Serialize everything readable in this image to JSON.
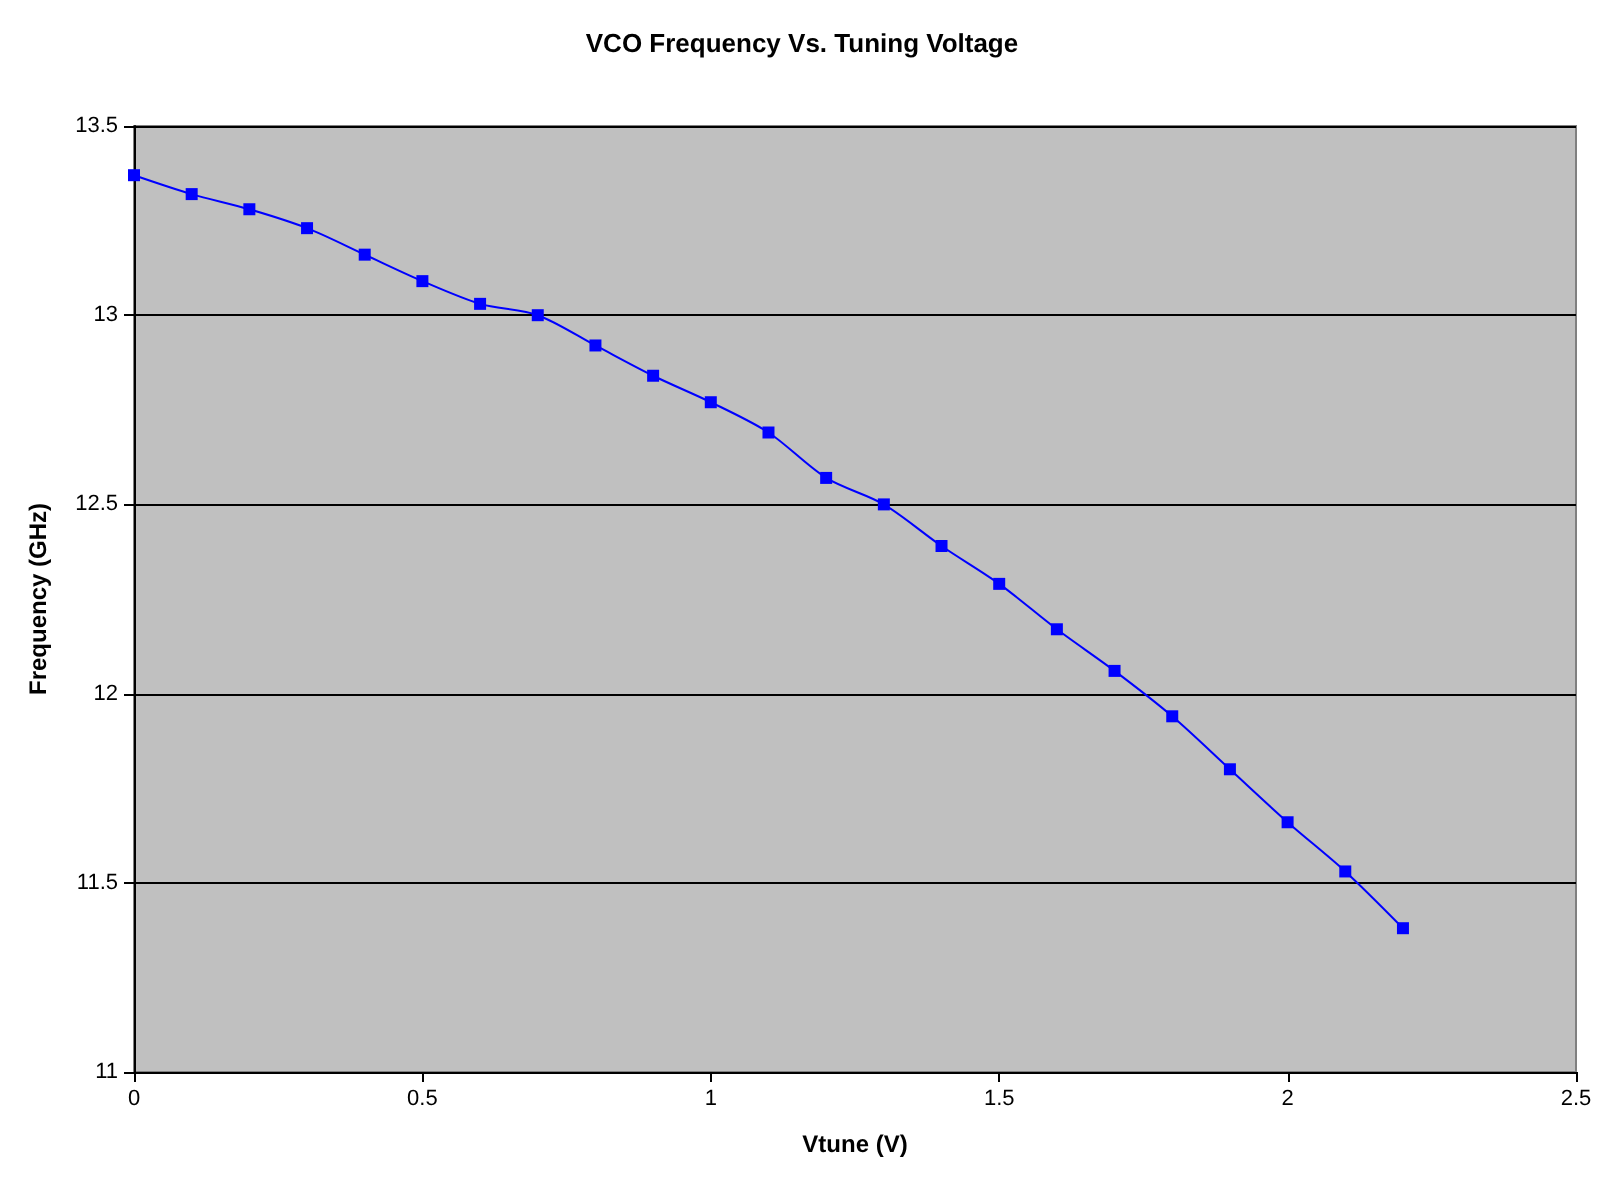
{
  "chart_data": {
    "type": "line",
    "title": "VCO Frequency Vs. Tuning Voltage",
    "xlabel": "Vtune (V)",
    "ylabel": "Frequency (GHz)",
    "x": [
      0,
      0.1,
      0.2,
      0.3,
      0.4,
      0.5,
      0.6,
      0.7,
      0.8,
      0.9,
      1.0,
      1.1,
      1.2,
      1.3,
      1.4,
      1.5,
      1.6,
      1.7,
      1.8,
      1.9,
      2.0,
      2.1,
      2.2
    ],
    "series": [
      {
        "color": "#0000ff",
        "values": [
          13.37,
          13.32,
          13.28,
          13.23,
          13.16,
          13.09,
          13.03,
          13.0,
          12.92,
          12.84,
          12.77,
          12.69,
          12.57,
          12.5,
          12.39,
          12.29,
          12.17,
          12.06,
          11.94,
          11.8,
          11.66,
          11.53,
          11.38
        ]
      }
    ],
    "xlim": [
      0,
      2.5
    ],
    "xticks": [
      0,
      0.5,
      1,
      1.5,
      2,
      2.5
    ],
    "ylim": [
      11,
      13.5
    ],
    "yticks": [
      11,
      11.5,
      12,
      12.5,
      13,
      13.5
    ],
    "grid": "y",
    "marker": "square",
    "line_style": "solid"
  }
}
